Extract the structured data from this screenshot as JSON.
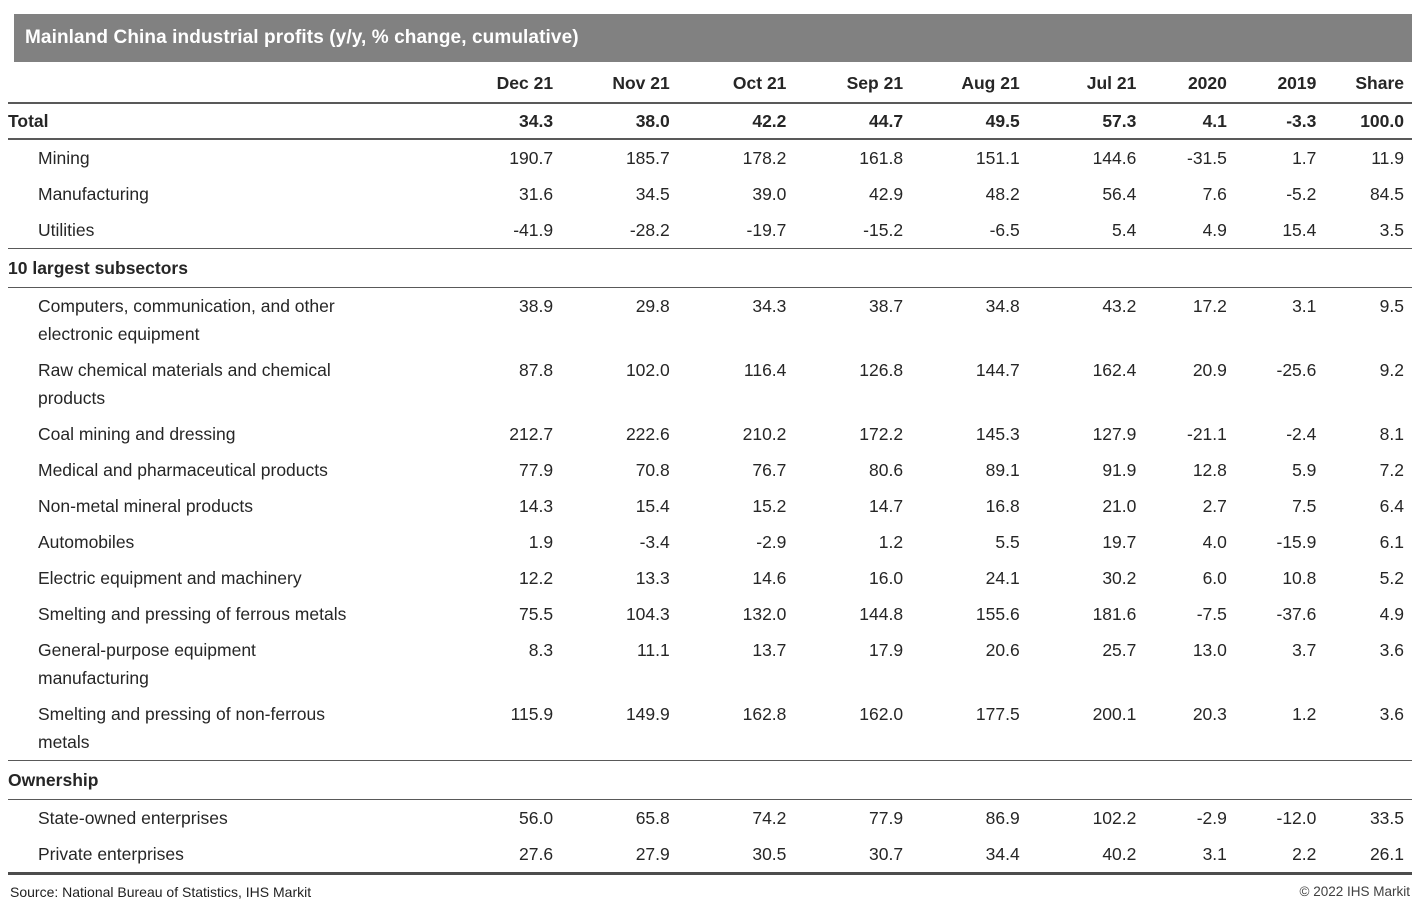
{
  "chart_data": {
    "type": "table",
    "title": "Mainland China industrial profits (y/y, % change, cumulative)",
    "columns": [
      "Dec 21",
      "Nov 21",
      "Oct 21",
      "Sep 21",
      "Aug 21",
      "Jul 21",
      "2020",
      "2019",
      "Share"
    ],
    "rows": [
      {
        "label": "Total",
        "type": "total",
        "values": [
          "34.3",
          "38.0",
          "42.2",
          "44.7",
          "49.5",
          "57.3",
          "4.1",
          "-3.3",
          "100.0"
        ]
      },
      {
        "label": "Mining",
        "type": "data",
        "values": [
          "190.7",
          "185.7",
          "178.2",
          "161.8",
          "151.1",
          "144.6",
          "-31.5",
          "1.7",
          "11.9"
        ]
      },
      {
        "label": "Manufacturing",
        "type": "data",
        "values": [
          "31.6",
          "34.5",
          "39.0",
          "42.9",
          "48.2",
          "56.4",
          "7.6",
          "-5.2",
          "84.5"
        ]
      },
      {
        "label": "Utilities",
        "type": "data",
        "divider_after": true,
        "values": [
          "-41.9",
          "-28.2",
          "-19.7",
          "-15.2",
          "-6.5",
          "5.4",
          "4.9",
          "15.4",
          "3.5"
        ]
      },
      {
        "label": "10 largest subsectors",
        "type": "section",
        "values": []
      },
      {
        "label": "Computers, communication, and other\nelectronic equipment",
        "type": "data",
        "values": [
          "38.9",
          "29.8",
          "34.3",
          "38.7",
          "34.8",
          "43.2",
          "17.2",
          "3.1",
          "9.5"
        ]
      },
      {
        "label": "Raw chemical materials and chemical\nproducts",
        "type": "data",
        "values": [
          "87.8",
          "102.0",
          "116.4",
          "126.8",
          "144.7",
          "162.4",
          "20.9",
          "-25.6",
          "9.2"
        ]
      },
      {
        "label": "Coal mining and dressing",
        "type": "data",
        "values": [
          "212.7",
          "222.6",
          "210.2",
          "172.2",
          "145.3",
          "127.9",
          "-21.1",
          "-2.4",
          "8.1"
        ]
      },
      {
        "label": "Medical and pharmaceutical products",
        "type": "data",
        "values": [
          "77.9",
          "70.8",
          "76.7",
          "80.6",
          "89.1",
          "91.9",
          "12.8",
          "5.9",
          "7.2"
        ]
      },
      {
        "label": "Non-metal mineral products",
        "type": "data",
        "values": [
          "14.3",
          "15.4",
          "15.2",
          "14.7",
          "16.8",
          "21.0",
          "2.7",
          "7.5",
          "6.4"
        ]
      },
      {
        "label": "Automobiles",
        "type": "data",
        "values": [
          "1.9",
          "-3.4",
          "-2.9",
          "1.2",
          "5.5",
          "19.7",
          "4.0",
          "-15.9",
          "6.1"
        ]
      },
      {
        "label": "Electric equipment and machinery",
        "type": "data",
        "values": [
          "12.2",
          "13.3",
          "14.6",
          "16.0",
          "24.1",
          "30.2",
          "6.0",
          "10.8",
          "5.2"
        ]
      },
      {
        "label": "Smelting and pressing of ferrous metals",
        "type": "data",
        "values": [
          "75.5",
          "104.3",
          "132.0",
          "144.8",
          "155.6",
          "181.6",
          "-7.5",
          "-37.6",
          "4.9"
        ]
      },
      {
        "label": "General-purpose equipment\nmanufacturing",
        "type": "data",
        "values": [
          "8.3",
          "11.1",
          "13.7",
          "17.9",
          "20.6",
          "25.7",
          "13.0",
          "3.7",
          "3.6"
        ]
      },
      {
        "label": "Smelting and pressing of non-ferrous\nmetals",
        "type": "data",
        "divider_after": true,
        "values": [
          "115.9",
          "149.9",
          "162.8",
          "162.0",
          "177.5",
          "200.1",
          "20.3",
          "1.2",
          "3.6"
        ]
      },
      {
        "label": "Ownership",
        "type": "section",
        "values": []
      },
      {
        "label": "State-owned enterprises",
        "type": "data",
        "values": [
          "56.0",
          "65.8",
          "74.2",
          "77.9",
          "86.9",
          "102.2",
          "-2.9",
          "-12.0",
          "33.5"
        ]
      },
      {
        "label": "Private enterprises",
        "type": "data",
        "values": [
          "27.6",
          "27.9",
          "30.5",
          "30.7",
          "34.4",
          "40.2",
          "3.1",
          "2.2",
          "26.1"
        ]
      }
    ]
  },
  "footer": {
    "source": "Source: National Bureau of Statistics, IHS Markit",
    "copyright": "© 2022 IHS Markit"
  },
  "colors": {
    "header_bg": "#818181",
    "header_text": "#ffffff",
    "body_text": "#262626",
    "line": "#595959",
    "thick_line": "#4d4d4d"
  }
}
